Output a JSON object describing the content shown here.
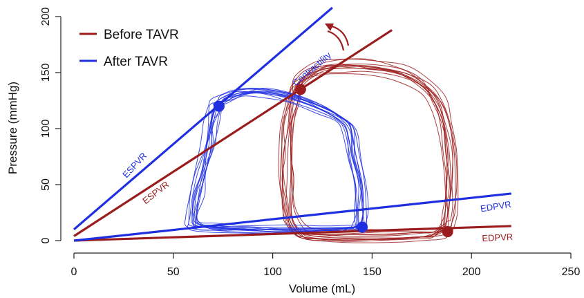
{
  "chart_data": {
    "type": "line",
    "title": "",
    "xlabel": "Volume (mL)",
    "ylabel": "Pressure (mmHg)",
    "xlim": [
      0,
      250
    ],
    "ylim": [
      0,
      200
    ],
    "xticks": [
      0,
      50,
      100,
      150,
      200,
      250
    ],
    "yticks": [
      0,
      50,
      100,
      150,
      200
    ],
    "grid": false,
    "legend_position": "top-left",
    "colors": {
      "before": "#9b1c1c",
      "after": "#1f2fe0"
    },
    "legend": [
      {
        "label": "Before TAVR",
        "color": "#9b1c1c"
      },
      {
        "label": "After TAVR",
        "color": "#1f2fe0"
      }
    ],
    "series": [
      {
        "name": "Before TAVR",
        "color": "#9b1c1c",
        "loop_count": 12,
        "loop": {
          "x": [
            188,
            190,
            191,
            190,
            188,
            184,
            177,
            165,
            150,
            135,
            125,
            118,
            112,
            110,
            108,
            107,
            107,
            108,
            110,
            115,
            125,
            140,
            160,
            175,
            183,
            188
          ],
          "y": [
            10,
            25,
            50,
            80,
            105,
            125,
            140,
            152,
            157,
            158,
            156,
            150,
            140,
            125,
            105,
            80,
            55,
            30,
            15,
            5,
            2,
            2,
            3,
            4,
            5,
            10
          ]
        },
        "espvr": {
          "x": [
            0,
            160
          ],
          "y": [
            4,
            188
          ]
        },
        "edpvr": {
          "x": [
            0,
            220
          ],
          "y": [
            0,
            13
          ]
        },
        "espvr_label": "ESPVR",
        "edpvr_label": "EDPVR",
        "end_systolic_point": {
          "x": 114,
          "y": 135
        },
        "end_diastolic_point": {
          "x": 188,
          "y": 8
        }
      },
      {
        "name": "After TAVR",
        "color": "#1f2fe0",
        "loop_count": 12,
        "loop": {
          "x": [
            145,
            146,
            145,
            142,
            140,
            135,
            125,
            110,
            95,
            85,
            78,
            74,
            72,
            70,
            68,
            65,
            62,
            60,
            62,
            70,
            85,
            105,
            125,
            138,
            143,
            145
          ],
          "y": [
            10,
            25,
            50,
            75,
            100,
            110,
            120,
            130,
            135,
            134,
            130,
            125,
            120,
            105,
            85,
            60,
            40,
            20,
            12,
            10,
            9,
            8,
            8,
            9,
            10,
            10
          ]
        },
        "espvr": {
          "x": [
            0,
            130
          ],
          "y": [
            10,
            208
          ]
        },
        "edpvr": {
          "x": [
            0,
            220
          ],
          "y": [
            0,
            42
          ]
        },
        "espvr_label": "ESPVR",
        "edpvr_label": "EDPVR",
        "end_systolic_point": {
          "x": 73,
          "y": 120
        },
        "end_diastolic_point": {
          "x": 145,
          "y": 12
        }
      }
    ],
    "annotations": [
      {
        "text": "Contractility",
        "color": "#1f2fe0"
      }
    ]
  }
}
